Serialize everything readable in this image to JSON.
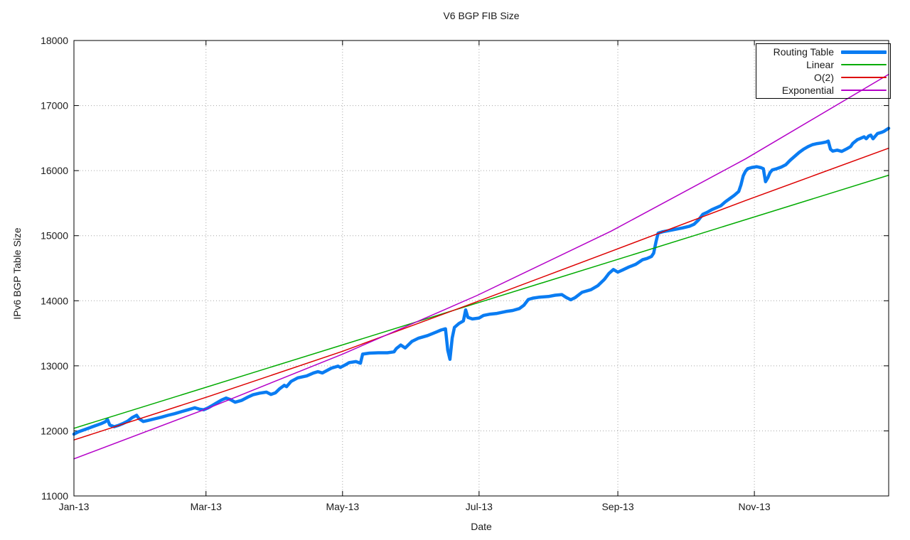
{
  "title": "V6 BGP FIB Size",
  "x_axis_title": "Date",
  "y_axis_title": "IPv6 BGP Table Size",
  "colors": {
    "background": "#ffffff",
    "plot_border": "#000000",
    "grid": "#a6a6a6",
    "text": "#1a1a1a"
  },
  "chart_data": {
    "type": "line",
    "title": "V6 BGP FIB Size",
    "xlabel": "Date",
    "ylabel": "IPv6 BGP Table Size",
    "x_unit": "days since Jan 1 2013",
    "xlim": [
      0,
      364
    ],
    "ylim": [
      11000,
      18000
    ],
    "grid": true,
    "grid_style": "dotted",
    "legend_position": "top-right",
    "yticks": [
      11000,
      12000,
      13000,
      14000,
      15000,
      16000,
      17000,
      18000
    ],
    "xticks": [
      {
        "day": 0,
        "label": "Jan-13"
      },
      {
        "day": 59,
        "label": "Mar-13"
      },
      {
        "day": 120,
        "label": "May-13"
      },
      {
        "day": 181,
        "label": "Jul-13"
      },
      {
        "day": 243,
        "label": "Sep-13"
      },
      {
        "day": 304,
        "label": "Nov-13"
      }
    ],
    "series": [
      {
        "name": "Routing Table",
        "color": "#0a7cf2",
        "width": 4.5,
        "points": [
          [
            0,
            11950
          ],
          [
            2,
            11985
          ],
          [
            4,
            12010
          ],
          [
            6,
            12035
          ],
          [
            8,
            12060
          ],
          [
            10,
            12085
          ],
          [
            12,
            12110
          ],
          [
            14,
            12140
          ],
          [
            15,
            12175
          ],
          [
            16,
            12090
          ],
          [
            18,
            12065
          ],
          [
            20,
            12085
          ],
          [
            22,
            12115
          ],
          [
            24,
            12150
          ],
          [
            26,
            12205
          ],
          [
            28,
            12240
          ],
          [
            29,
            12190
          ],
          [
            31,
            12145
          ],
          [
            33,
            12160
          ],
          [
            36,
            12185
          ],
          [
            39,
            12210
          ],
          [
            42,
            12240
          ],
          [
            45,
            12265
          ],
          [
            48,
            12295
          ],
          [
            51,
            12325
          ],
          [
            54,
            12355
          ],
          [
            56,
            12335
          ],
          [
            58,
            12325
          ],
          [
            60,
            12355
          ],
          [
            62,
            12395
          ],
          [
            64,
            12435
          ],
          [
            66,
            12475
          ],
          [
            68,
            12505
          ],
          [
            70,
            12480
          ],
          [
            72,
            12440
          ],
          [
            75,
            12470
          ],
          [
            78,
            12525
          ],
          [
            80,
            12555
          ],
          [
            83,
            12580
          ],
          [
            86,
            12595
          ],
          [
            88,
            12560
          ],
          [
            90,
            12585
          ],
          [
            92,
            12650
          ],
          [
            94,
            12700
          ],
          [
            95,
            12680
          ],
          [
            97,
            12760
          ],
          [
            100,
            12815
          ],
          [
            104,
            12845
          ],
          [
            107,
            12890
          ],
          [
            109,
            12910
          ],
          [
            111,
            12890
          ],
          [
            115,
            12965
          ],
          [
            118,
            12995
          ],
          [
            119,
            12975
          ],
          [
            121,
            13010
          ],
          [
            123,
            13050
          ],
          [
            126,
            13065
          ],
          [
            128,
            13040
          ],
          [
            129,
            13180
          ],
          [
            132,
            13195
          ],
          [
            136,
            13200
          ],
          [
            140,
            13200
          ],
          [
            143,
            13215
          ],
          [
            144,
            13265
          ],
          [
            146,
            13320
          ],
          [
            148,
            13275
          ],
          [
            151,
            13375
          ],
          [
            154,
            13425
          ],
          [
            158,
            13465
          ],
          [
            162,
            13520
          ],
          [
            164,
            13550
          ],
          [
            166,
            13570
          ],
          [
            167,
            13240
          ],
          [
            168,
            13100
          ],
          [
            169,
            13430
          ],
          [
            170,
            13590
          ],
          [
            172,
            13650
          ],
          [
            174,
            13690
          ],
          [
            175,
            13860
          ],
          [
            176,
            13745
          ],
          [
            178,
            13720
          ],
          [
            181,
            13735
          ],
          [
            183,
            13775
          ],
          [
            186,
            13795
          ],
          [
            189,
            13805
          ],
          [
            193,
            13835
          ],
          [
            196,
            13850
          ],
          [
            199,
            13880
          ],
          [
            201,
            13930
          ],
          [
            203,
            14020
          ],
          [
            205,
            14040
          ],
          [
            208,
            14055
          ],
          [
            212,
            14065
          ],
          [
            215,
            14085
          ],
          [
            218,
            14095
          ],
          [
            220,
            14050
          ],
          [
            222,
            14015
          ],
          [
            224,
            14050
          ],
          [
            227,
            14130
          ],
          [
            231,
            14170
          ],
          [
            234,
            14230
          ],
          [
            237,
            14330
          ],
          [
            239,
            14420
          ],
          [
            241,
            14480
          ],
          [
            243,
            14440
          ],
          [
            245,
            14470
          ],
          [
            248,
            14520
          ],
          [
            251,
            14560
          ],
          [
            254,
            14630
          ],
          [
            256,
            14650
          ],
          [
            258,
            14680
          ],
          [
            259,
            14730
          ],
          [
            260,
            14900
          ],
          [
            261,
            15040
          ],
          [
            263,
            15060
          ],
          [
            266,
            15080
          ],
          [
            269,
            15100
          ],
          [
            272,
            15120
          ],
          [
            275,
            15145
          ],
          [
            277,
            15175
          ],
          [
            279,
            15240
          ],
          [
            281,
            15330
          ],
          [
            283,
            15360
          ],
          [
            285,
            15400
          ],
          [
            287,
            15430
          ],
          [
            289,
            15460
          ],
          [
            291,
            15520
          ],
          [
            293,
            15570
          ],
          [
            295,
            15620
          ],
          [
            297,
            15680
          ],
          [
            298,
            15780
          ],
          [
            299,
            15920
          ],
          [
            300,
            15990
          ],
          [
            301,
            16030
          ],
          [
            303,
            16050
          ],
          [
            305,
            16060
          ],
          [
            307,
            16045
          ],
          [
            308,
            16030
          ],
          [
            309,
            15830
          ],
          [
            310,
            15890
          ],
          [
            311,
            15970
          ],
          [
            312,
            16010
          ],
          [
            314,
            16030
          ],
          [
            316,
            16055
          ],
          [
            318,
            16090
          ],
          [
            320,
            16160
          ],
          [
            322,
            16220
          ],
          [
            324,
            16280
          ],
          [
            326,
            16330
          ],
          [
            328,
            16370
          ],
          [
            330,
            16400
          ],
          [
            332,
            16415
          ],
          [
            334,
            16425
          ],
          [
            336,
            16440
          ],
          [
            337,
            16455
          ],
          [
            338,
            16330
          ],
          [
            339,
            16300
          ],
          [
            341,
            16315
          ],
          [
            343,
            16295
          ],
          [
            345,
            16330
          ],
          [
            347,
            16370
          ],
          [
            348,
            16420
          ],
          [
            350,
            16475
          ],
          [
            351,
            16490
          ],
          [
            353,
            16520
          ],
          [
            354,
            16490
          ],
          [
            355,
            16530
          ],
          [
            356,
            16545
          ],
          [
            357,
            16490
          ],
          [
            359,
            16570
          ],
          [
            361,
            16590
          ],
          [
            362,
            16605
          ],
          [
            363,
            16630
          ],
          [
            364,
            16650
          ]
        ]
      },
      {
        "name": "Linear",
        "color": "#00ab00",
        "width": 1.5,
        "points": [
          [
            0,
            12040
          ],
          [
            364,
            15930
          ]
        ]
      },
      {
        "name": "O(2)",
        "color": "#dd0000",
        "width": 1.5,
        "points": [
          [
            0,
            11860
          ],
          [
            60,
            12527
          ],
          [
            120,
            13223
          ],
          [
            180,
            13985
          ],
          [
            240,
            14760
          ],
          [
            300,
            15540
          ],
          [
            364,
            16345
          ]
        ]
      },
      {
        "name": "Exponential",
        "color": "#b400c8",
        "width": 1.5,
        "points": [
          [
            0,
            11570
          ],
          [
            60,
            12350
          ],
          [
            120,
            13180
          ],
          [
            180,
            14080
          ],
          [
            240,
            15070
          ],
          [
            300,
            16180
          ],
          [
            364,
            17480
          ]
        ]
      }
    ]
  }
}
